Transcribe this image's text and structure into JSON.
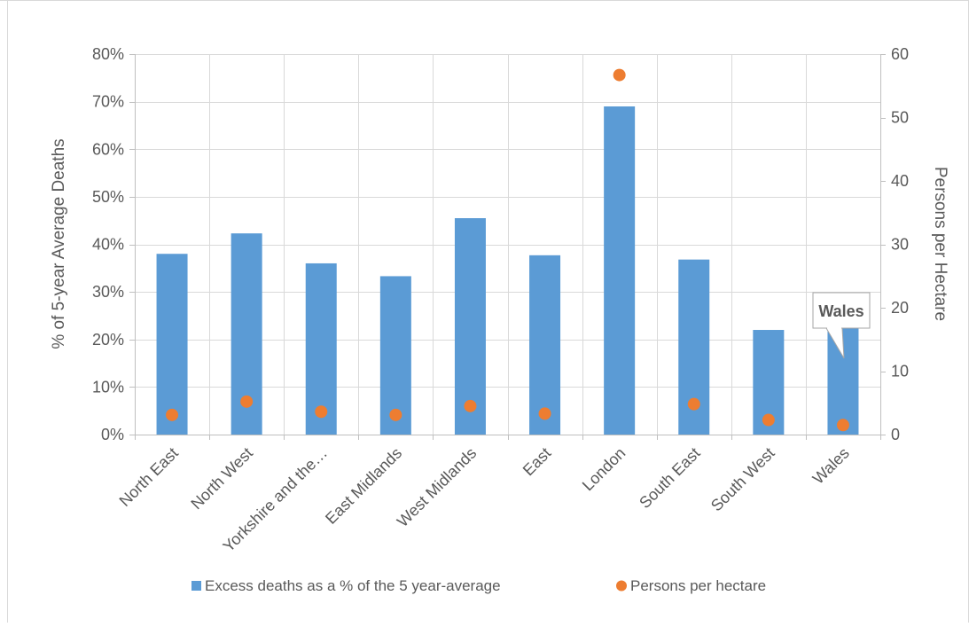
{
  "chart_data": {
    "type": "bar",
    "title": "",
    "categories": [
      "North East",
      "North West",
      "Yorkshire and the…",
      "East Midlands",
      "West Midlands",
      "East",
      "London",
      "South East",
      "South West",
      "Wales"
    ],
    "series": [
      {
        "name": "Excess deaths as a % of the 5 year-average",
        "type": "bar",
        "axis": "left",
        "color": "#5b9bd5",
        "values": [
          0.38,
          0.423,
          0.36,
          0.333,
          0.455,
          0.377,
          0.69,
          0.368,
          0.22,
          0.225
        ]
      },
      {
        "name": "Persons per hectare",
        "type": "scatter",
        "axis": "right",
        "color": "#ed7d31",
        "values": [
          3.1,
          5.2,
          3.6,
          3.1,
          4.5,
          3.3,
          56.7,
          4.8,
          2.3,
          1.5
        ]
      }
    ],
    "y_left": {
      "label": "% of 5-year Average Deaths",
      "min": 0,
      "max": 0.8,
      "step": 0.1,
      "ticks": [
        "0%",
        "10%",
        "20%",
        "30%",
        "40%",
        "50%",
        "60%",
        "70%",
        "80%"
      ]
    },
    "y_right": {
      "label": "Persons per Hectare",
      "min": 0,
      "max": 60,
      "step": 10,
      "ticks": [
        "0",
        "10",
        "20",
        "30",
        "40",
        "50",
        "60"
      ]
    },
    "grid": true,
    "legend_position": "bottom",
    "annotation": {
      "text": "Wales",
      "target_category": "Wales"
    }
  }
}
